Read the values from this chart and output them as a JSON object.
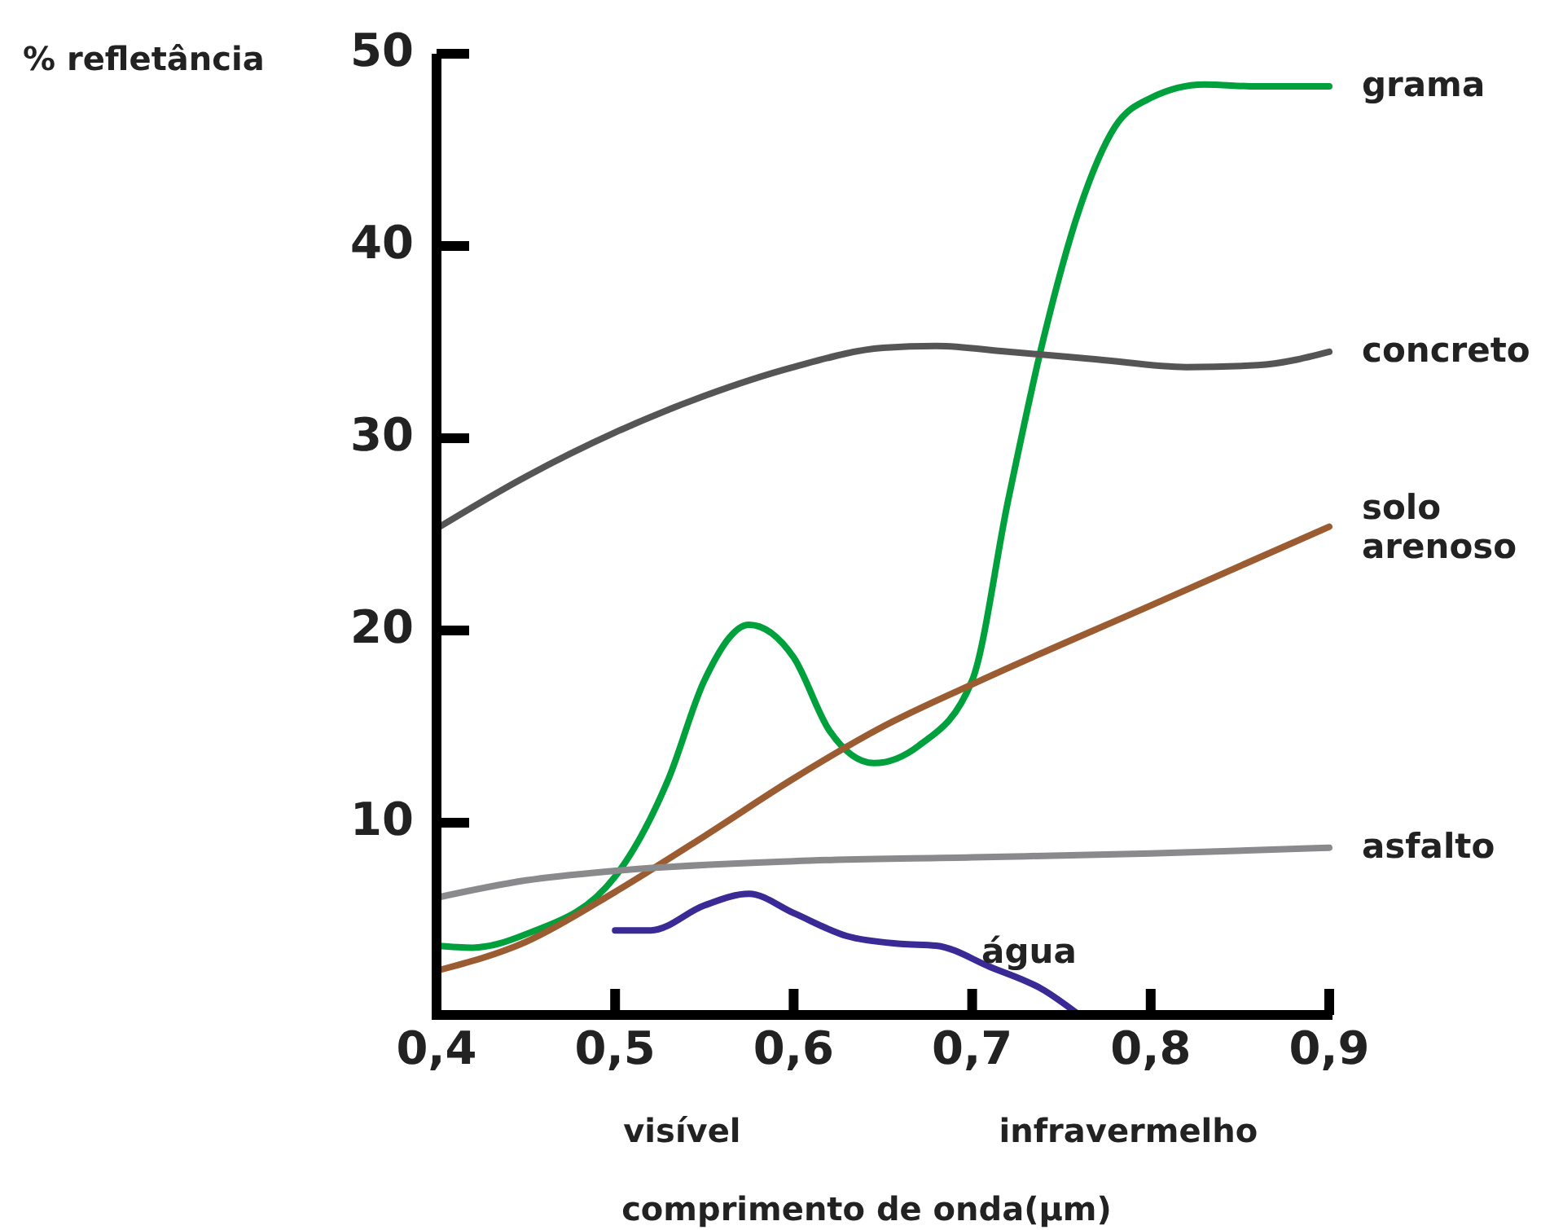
{
  "chart_data": {
    "type": "line",
    "ylabel": "% refletância",
    "xlabel": "comprimento de onda(µm)",
    "xlim": [
      0.4,
      0.9
    ],
    "xticks": [
      {
        "value": 0.4,
        "label": "0,4"
      },
      {
        "value": 0.5,
        "label": "0,5"
      },
      {
        "value": 0.6,
        "label": "0,6"
      },
      {
        "value": 0.7,
        "label": "0,7"
      },
      {
        "value": 0.8,
        "label": "0,8"
      },
      {
        "value": 0.9,
        "label": "0,9"
      }
    ],
    "ylim": [
      0,
      50
    ],
    "yticks": [
      10,
      20,
      30,
      40,
      50
    ],
    "grid": false,
    "marker": "none",
    "line_style": "solid",
    "series": [
      {
        "name": "grama",
        "color": "#00a03c",
        "x": [
          0.4,
          0.42,
          0.45,
          0.5,
          0.53,
          0.55,
          0.575,
          0.6,
          0.62,
          0.645,
          0.67,
          0.7,
          0.72,
          0.74,
          0.76,
          0.78,
          0.8,
          0.83,
          0.86,
          0.9
        ],
        "values": [
          3.6,
          3.5,
          4.2,
          7.2,
          12.3,
          17.4,
          20.3,
          18.6,
          14.8,
          13.1,
          14,
          17.4,
          26.7,
          35.2,
          41.9,
          46.2,
          47.7,
          48.4,
          48.3,
          48.3
        ]
      },
      {
        "name": "concreto",
        "color": "#555555",
        "x": [
          0.4,
          0.45,
          0.5,
          0.55,
          0.6,
          0.65,
          0.68,
          0.72,
          0.77,
          0.82,
          0.86,
          0.9
        ],
        "values": [
          25.3,
          28,
          30.3,
          32.2,
          33.7,
          34.7,
          34.8,
          34.5,
          34.1,
          33.7,
          33.8,
          34.5
        ]
      },
      {
        "name": "solo arenoso",
        "color": "#9a5c30",
        "x": [
          0.4,
          0.45,
          0.5,
          0.55,
          0.6,
          0.65,
          0.7,
          0.8,
          0.9
        ],
        "values": [
          2.3,
          3.8,
          6.4,
          9.3,
          12.3,
          15,
          17.2,
          21.3,
          25.4
        ]
      },
      {
        "name": "asfalto",
        "color": "#8a8a8c",
        "x": [
          0.4,
          0.45,
          0.5,
          0.6,
          0.7,
          0.8,
          0.9
        ],
        "values": [
          6.1,
          7,
          7.5,
          8,
          8.2,
          8.4,
          8.7
        ]
      },
      {
        "name": "água",
        "color": "#3a2a96",
        "x": [
          0.5,
          0.52,
          0.55,
          0.575,
          0.6,
          0.63,
          0.66,
          0.68,
          0.71,
          0.74,
          0.76
        ],
        "values": [
          4.4,
          4.4,
          5.7,
          6.3,
          5.3,
          4.1,
          3.7,
          3.6,
          2.5,
          1.3,
          0
        ]
      }
    ],
    "annotations": [
      "visível",
      "infravermelho"
    ]
  }
}
